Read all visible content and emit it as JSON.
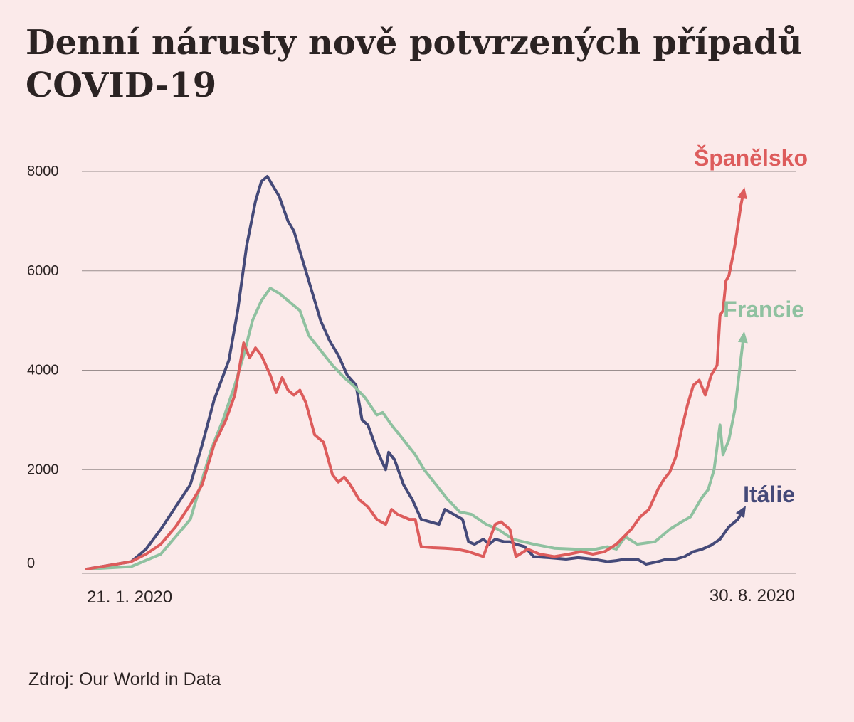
{
  "title": "Denní nárusty nově potvrzených případů COVID-19",
  "source": "Zdroj: Our World in Data",
  "chart_data": {
    "type": "line",
    "title": "Denní nárusty nově potvrzených případů COVID-19",
    "xlabel": "",
    "ylabel": "",
    "x_start_label": "21. 1. 2020",
    "x_end_label": "30. 8. 2020",
    "ylim": [
      0,
      8000
    ],
    "yticks": [
      "0",
      "2000",
      "4000",
      "6000",
      "8000"
    ],
    "grid": true,
    "colors": {
      "spain": "#dd5c5c",
      "france": "#8fc1a0",
      "italy": "#454a79",
      "grid": "#9a8e8e",
      "axis": "#2b2323",
      "background": "#fbeaea"
    },
    "series": [
      {
        "name": "Itálie",
        "color": "#454a79",
        "points": [
          [
            "2020-01-21",
            0
          ],
          [
            "2020-01-31",
            100
          ],
          [
            "2020-02-05",
            150
          ],
          [
            "2020-02-10",
            400
          ],
          [
            "2020-02-15",
            800
          ],
          [
            "2020-02-20",
            1250
          ],
          [
            "2020-02-25",
            1700
          ],
          [
            "2020-02-29",
            2500
          ],
          [
            "2020-03-04",
            3400
          ],
          [
            "2020-03-09",
            4200
          ],
          [
            "2020-03-12",
            5200
          ],
          [
            "2020-03-15",
            6500
          ],
          [
            "2020-03-18",
            7400
          ],
          [
            "2020-03-20",
            7800
          ],
          [
            "2020-03-22",
            7900
          ],
          [
            "2020-03-24",
            7700
          ],
          [
            "2020-03-26",
            7500
          ],
          [
            "2020-03-29",
            7000
          ],
          [
            "2020-03-31",
            6800
          ],
          [
            "2020-04-03",
            6200
          ],
          [
            "2020-04-06",
            5600
          ],
          [
            "2020-04-09",
            5000
          ],
          [
            "2020-04-12",
            4600
          ],
          [
            "2020-04-15",
            4300
          ],
          [
            "2020-04-18",
            3900
          ],
          [
            "2020-04-21",
            3700
          ],
          [
            "2020-04-23",
            3000
          ],
          [
            "2020-04-25",
            2900
          ],
          [
            "2020-04-28",
            2400
          ],
          [
            "2020-05-01",
            2000
          ],
          [
            "2020-05-02",
            2350
          ],
          [
            "2020-05-04",
            2200
          ],
          [
            "2020-05-07",
            1700
          ],
          [
            "2020-05-10",
            1400
          ],
          [
            "2020-05-13",
            1000
          ],
          [
            "2020-05-16",
            950
          ],
          [
            "2020-05-19",
            900
          ],
          [
            "2020-05-21",
            1200
          ],
          [
            "2020-05-24",
            1100
          ],
          [
            "2020-05-27",
            1000
          ],
          [
            "2020-05-29",
            550
          ],
          [
            "2020-05-31",
            500
          ],
          [
            "2020-06-03",
            600
          ],
          [
            "2020-06-05",
            500
          ],
          [
            "2020-06-07",
            600
          ],
          [
            "2020-06-10",
            550
          ],
          [
            "2020-06-12",
            550
          ],
          [
            "2020-06-14",
            500
          ],
          [
            "2020-06-17",
            450
          ],
          [
            "2020-06-20",
            250
          ],
          [
            "2020-06-25",
            230
          ],
          [
            "2020-07-01",
            200
          ],
          [
            "2020-07-05",
            230
          ],
          [
            "2020-07-10",
            200
          ],
          [
            "2020-07-15",
            150
          ],
          [
            "2020-07-18",
            170
          ],
          [
            "2020-07-21",
            200
          ],
          [
            "2020-07-25",
            200
          ],
          [
            "2020-07-28",
            100
          ],
          [
            "2020-08-01",
            150
          ],
          [
            "2020-08-04",
            200
          ],
          [
            "2020-08-07",
            200
          ],
          [
            "2020-08-10",
            250
          ],
          [
            "2020-08-13",
            350
          ],
          [
            "2020-08-16",
            400
          ],
          [
            "2020-08-19",
            480
          ],
          [
            "2020-08-22",
            600
          ],
          [
            "2020-08-25",
            850
          ],
          [
            "2020-08-28",
            1000
          ],
          [
            "2020-08-30",
            1200
          ]
        ]
      },
      {
        "name": "Francie",
        "color": "#8fc1a0",
        "points": [
          [
            "2020-01-21",
            0
          ],
          [
            "2020-02-05",
            50
          ],
          [
            "2020-02-15",
            300
          ],
          [
            "2020-02-20",
            650
          ],
          [
            "2020-02-25",
            1000
          ],
          [
            "2020-02-29",
            1800
          ],
          [
            "2020-03-03",
            2400
          ],
          [
            "2020-03-07",
            3000
          ],
          [
            "2020-03-11",
            3700
          ],
          [
            "2020-03-14",
            4300
          ],
          [
            "2020-03-17",
            5000
          ],
          [
            "2020-03-20",
            5400
          ],
          [
            "2020-03-23",
            5650
          ],
          [
            "2020-03-26",
            5550
          ],
          [
            "2020-03-29",
            5400
          ],
          [
            "2020-04-02",
            5200
          ],
          [
            "2020-04-05",
            4700
          ],
          [
            "2020-04-09",
            4400
          ],
          [
            "2020-04-13",
            4100
          ],
          [
            "2020-04-17",
            3850
          ],
          [
            "2020-04-20",
            3700
          ],
          [
            "2020-04-24",
            3450
          ],
          [
            "2020-04-28",
            3100
          ],
          [
            "2020-04-30",
            3150
          ],
          [
            "2020-05-03",
            2900
          ],
          [
            "2020-05-07",
            2600
          ],
          [
            "2020-05-11",
            2300
          ],
          [
            "2020-05-14",
            2000
          ],
          [
            "2020-05-18",
            1700
          ],
          [
            "2020-05-22",
            1400
          ],
          [
            "2020-05-26",
            1150
          ],
          [
            "2020-05-30",
            1100
          ],
          [
            "2020-06-04",
            900
          ],
          [
            "2020-06-08",
            800
          ],
          [
            "2020-06-13",
            600
          ],
          [
            "2020-06-20",
            500
          ],
          [
            "2020-06-27",
            420
          ],
          [
            "2020-07-04",
            400
          ],
          [
            "2020-07-11",
            400
          ],
          [
            "2020-07-15",
            450
          ],
          [
            "2020-07-18",
            400
          ],
          [
            "2020-07-21",
            650
          ],
          [
            "2020-07-25",
            500
          ],
          [
            "2020-07-31",
            550
          ],
          [
            "2020-08-05",
            800
          ],
          [
            "2020-08-09",
            950
          ],
          [
            "2020-08-12",
            1050
          ],
          [
            "2020-08-14",
            1250
          ],
          [
            "2020-08-16",
            1450
          ],
          [
            "2020-08-18",
            1600
          ],
          [
            "2020-08-20",
            2000
          ],
          [
            "2020-08-22",
            2900
          ],
          [
            "2020-08-23",
            2300
          ],
          [
            "2020-08-25",
            2600
          ],
          [
            "2020-08-27",
            3200
          ],
          [
            "2020-08-28",
            3700
          ],
          [
            "2020-08-29",
            4200
          ],
          [
            "2020-08-30",
            4700
          ]
        ]
      },
      {
        "name": "Španělsko",
        "color": "#dd5c5c",
        "points": [
          [
            "2020-01-21",
            0
          ],
          [
            "2020-01-31",
            100
          ],
          [
            "2020-02-05",
            150
          ],
          [
            "2020-02-10",
            300
          ],
          [
            "2020-02-15",
            500
          ],
          [
            "2020-02-20",
            850
          ],
          [
            "2020-02-25",
            1300
          ],
          [
            "2020-02-29",
            1700
          ],
          [
            "2020-03-04",
            2500
          ],
          [
            "2020-03-08",
            3000
          ],
          [
            "2020-03-11",
            3500
          ],
          [
            "2020-03-14",
            4550
          ],
          [
            "2020-03-16",
            4250
          ],
          [
            "2020-03-18",
            4450
          ],
          [
            "2020-03-20",
            4300
          ],
          [
            "2020-03-23",
            3900
          ],
          [
            "2020-03-25",
            3550
          ],
          [
            "2020-03-27",
            3850
          ],
          [
            "2020-03-29",
            3600
          ],
          [
            "2020-03-31",
            3500
          ],
          [
            "2020-04-02",
            3600
          ],
          [
            "2020-04-04",
            3350
          ],
          [
            "2020-04-07",
            2700
          ],
          [
            "2020-04-10",
            2550
          ],
          [
            "2020-04-13",
            1900
          ],
          [
            "2020-04-15",
            1750
          ],
          [
            "2020-04-17",
            1850
          ],
          [
            "2020-04-19",
            1700
          ],
          [
            "2020-04-22",
            1400
          ],
          [
            "2020-04-25",
            1250
          ],
          [
            "2020-04-28",
            1000
          ],
          [
            "2020-05-01",
            900
          ],
          [
            "2020-05-03",
            1200
          ],
          [
            "2020-05-05",
            1100
          ],
          [
            "2020-05-09",
            1000
          ],
          [
            "2020-05-11",
            1000
          ],
          [
            "2020-05-13",
            450
          ],
          [
            "2020-05-17",
            430
          ],
          [
            "2020-05-21",
            420
          ],
          [
            "2020-05-25",
            400
          ],
          [
            "2020-05-29",
            350
          ],
          [
            "2020-06-03",
            250
          ],
          [
            "2020-06-07",
            900
          ],
          [
            "2020-06-09",
            950
          ],
          [
            "2020-06-12",
            800
          ],
          [
            "2020-06-14",
            250
          ],
          [
            "2020-06-18",
            400
          ],
          [
            "2020-06-22",
            300
          ],
          [
            "2020-06-27",
            250
          ],
          [
            "2020-07-02",
            300
          ],
          [
            "2020-07-06",
            350
          ],
          [
            "2020-07-10",
            300
          ],
          [
            "2020-07-14",
            350
          ],
          [
            "2020-07-18",
            500
          ],
          [
            "2020-07-23",
            800
          ],
          [
            "2020-07-26",
            1050
          ],
          [
            "2020-07-29",
            1200
          ],
          [
            "2020-08-01",
            1600
          ],
          [
            "2020-08-03",
            1800
          ],
          [
            "2020-08-05",
            1950
          ],
          [
            "2020-08-07",
            2250
          ],
          [
            "2020-08-09",
            2800
          ],
          [
            "2020-08-11",
            3300
          ],
          [
            "2020-08-13",
            3700
          ],
          [
            "2020-08-15",
            3800
          ],
          [
            "2020-08-17",
            3500
          ],
          [
            "2020-08-19",
            3900
          ],
          [
            "2020-08-21",
            4100
          ],
          [
            "2020-08-22",
            5100
          ],
          [
            "2020-08-23",
            5200
          ],
          [
            "2020-08-24",
            5800
          ],
          [
            "2020-08-25",
            5900
          ],
          [
            "2020-08-26",
            6200
          ],
          [
            "2020-08-27",
            6500
          ],
          [
            "2020-08-28",
            6900
          ],
          [
            "2020-08-29",
            7300
          ],
          [
            "2020-08-30",
            7600
          ]
        ]
      }
    ]
  }
}
